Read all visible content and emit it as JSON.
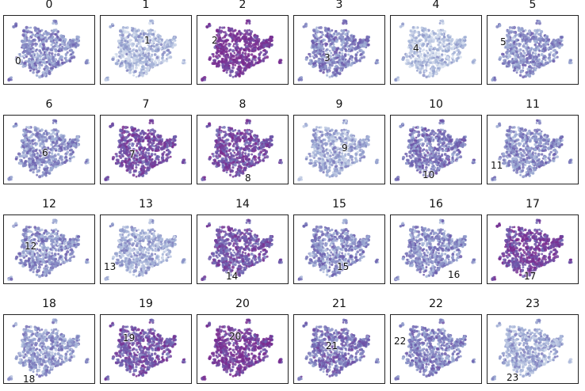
{
  "chart_data": {
    "type": "scatter",
    "description_kind": "small-multiples UMAP-style embedding, one panel per cluster, same cloud colored by per-cluster intensity",
    "colormap": [
      "#dbe3f0",
      "#9aa9d2",
      "#6b5fae",
      "#7a2b8f"
    ],
    "panels": [
      {
        "title": "0",
        "label": "0",
        "intensity": 0.45
      },
      {
        "title": "1",
        "label": "1",
        "intensity": 0.25
      },
      {
        "title": "2",
        "label": "2",
        "intensity": 0.95
      },
      {
        "title": "3",
        "label": "3",
        "intensity": 0.5
      },
      {
        "title": "4",
        "label": "4",
        "intensity": 0.2
      },
      {
        "title": "5",
        "label": "5",
        "intensity": 0.45
      },
      {
        "title": "6",
        "label": "6",
        "intensity": 0.45
      },
      {
        "title": "7",
        "label": "7",
        "intensity": 0.8
      },
      {
        "title": "8",
        "label": "8",
        "intensity": 0.8
      },
      {
        "title": "9",
        "label": "9",
        "intensity": 0.3
      },
      {
        "title": "10",
        "label": "10",
        "intensity": 0.55
      },
      {
        "title": "11",
        "label": "11",
        "intensity": 0.45
      },
      {
        "title": "12",
        "label": "12",
        "intensity": 0.45
      },
      {
        "title": "13",
        "label": "13",
        "intensity": 0.3
      },
      {
        "title": "14",
        "label": "14",
        "intensity": 0.75
      },
      {
        "title": "15",
        "label": "15",
        "intensity": 0.45
      },
      {
        "title": "16",
        "label": "16",
        "intensity": 0.45
      },
      {
        "title": "17",
        "label": "17",
        "intensity": 0.85
      },
      {
        "title": "18",
        "label": "18",
        "intensity": 0.4
      },
      {
        "title": "19",
        "label": "19",
        "intensity": 0.75
      },
      {
        "title": "20",
        "label": "20",
        "intensity": 0.92
      },
      {
        "title": "21",
        "label": "21",
        "intensity": 0.6
      },
      {
        "title": "22",
        "label": "22",
        "intensity": 0.5
      },
      {
        "title": "23",
        "label": "23",
        "intensity": 0.3
      }
    ]
  }
}
